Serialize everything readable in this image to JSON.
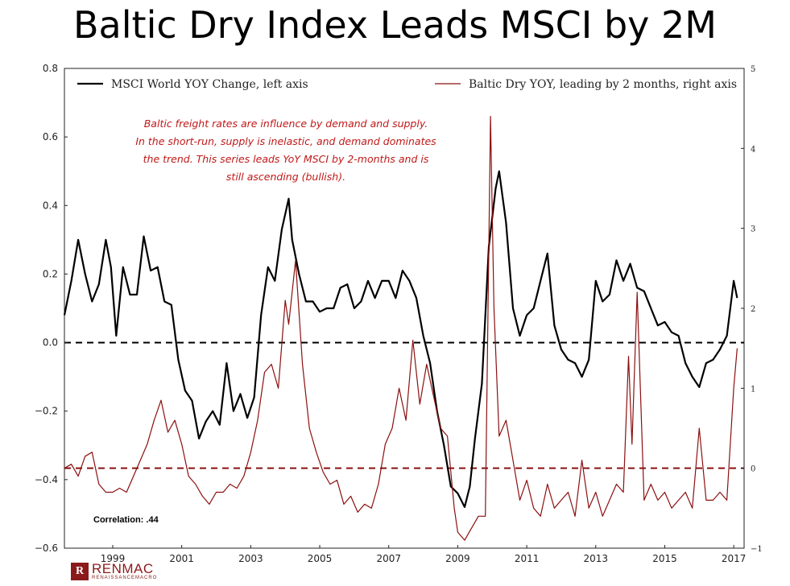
{
  "title": "Baltic Dry Index Leads MSCI by 2M",
  "chart_data": {
    "type": "line",
    "title": "Baltic Dry Index Leads MSCI by 2M",
    "x_range": [
      1997.6,
      2017.3
    ],
    "left_axis": {
      "range": [
        -0.6,
        0.8
      ],
      "ticks": [
        "0.8",
        "0.6",
        "0.4",
        "0.2",
        "0.0",
        "−0.2",
        "−0.4",
        "−0.6"
      ],
      "tick_values": [
        0.8,
        0.6,
        0.4,
        0.2,
        0.0,
        -0.2,
        -0.4,
        -0.6
      ]
    },
    "right_axis": {
      "range": [
        -1,
        5
      ],
      "ticks": [
        "5",
        "4",
        "3",
        "2",
        "1",
        "0",
        "−1"
      ],
      "tick_values": [
        5,
        4,
        3,
        2,
        1,
        0,
        -1
      ]
    },
    "x_ticks": {
      "labels": [
        "1999",
        "2001",
        "2003",
        "2005",
        "2007",
        "2009",
        "2011",
        "2013",
        "2015",
        "2017"
      ],
      "values": [
        1999,
        2001,
        2003,
        2005,
        2007,
        2009,
        2011,
        2013,
        2015,
        2017
      ]
    },
    "reference_lines": {
      "left_zero": 0.0,
      "right_zero": 0.0
    },
    "series": [
      {
        "name": "MSCI World YOY Change, left axis",
        "axis": "left",
        "color": "#000000",
        "x": [
          1997.6,
          1997.8,
          1998.0,
          1998.2,
          1998.4,
          1998.6,
          1998.8,
          1998.95,
          1999.1,
          1999.3,
          1999.5,
          1999.7,
          1999.9,
          2000.1,
          2000.3,
          2000.5,
          2000.7,
          2000.9,
          2001.1,
          2001.3,
          2001.5,
          2001.7,
          2001.9,
          2002.1,
          2002.3,
          2002.5,
          2002.7,
          2002.9,
          2003.1,
          2003.3,
          2003.5,
          2003.7,
          2003.9,
          2004.1,
          2004.2,
          2004.4,
          2004.6,
          2004.8,
          2005.0,
          2005.2,
          2005.4,
          2005.6,
          2005.8,
          2006.0,
          2006.2,
          2006.4,
          2006.6,
          2006.8,
          2007.0,
          2007.2,
          2007.4,
          2007.6,
          2007.8,
          2008.0,
          2008.2,
          2008.4,
          2008.6,
          2008.8,
          2009.0,
          2009.2,
          2009.35,
          2009.5,
          2009.7,
          2009.9,
          2010.1,
          2010.2,
          2010.4,
          2010.6,
          2010.8,
          2011.0,
          2011.2,
          2011.4,
          2011.6,
          2011.8,
          2012.0,
          2012.2,
          2012.4,
          2012.6,
          2012.8,
          2013.0,
          2013.2,
          2013.4,
          2013.6,
          2013.8,
          2014.0,
          2014.2,
          2014.4,
          2014.6,
          2014.8,
          2015.0,
          2015.2,
          2015.4,
          2015.6,
          2015.8,
          2016.0,
          2016.2,
          2016.4,
          2016.6,
          2016.8,
          2017.0,
          2017.1
        ],
        "values": [
          0.08,
          0.18,
          0.3,
          0.2,
          0.12,
          0.17,
          0.3,
          0.22,
          0.02,
          0.22,
          0.14,
          0.14,
          0.31,
          0.21,
          0.22,
          0.12,
          0.11,
          -0.05,
          -0.14,
          -0.17,
          -0.28,
          -0.23,
          -0.2,
          -0.24,
          -0.06,
          -0.2,
          -0.15,
          -0.22,
          -0.16,
          0.08,
          0.22,
          0.18,
          0.33,
          0.42,
          0.3,
          0.2,
          0.12,
          0.12,
          0.09,
          0.1,
          0.1,
          0.16,
          0.17,
          0.1,
          0.12,
          0.18,
          0.13,
          0.18,
          0.18,
          0.13,
          0.21,
          0.18,
          0.13,
          0.02,
          -0.06,
          -0.2,
          -0.3,
          -0.42,
          -0.44,
          -0.48,
          -0.42,
          -0.28,
          -0.12,
          0.28,
          0.45,
          0.5,
          0.35,
          0.1,
          0.02,
          0.08,
          0.1,
          0.18,
          0.26,
          0.05,
          -0.02,
          -0.05,
          -0.06,
          -0.1,
          -0.05,
          0.18,
          0.12,
          0.14,
          0.24,
          0.18,
          0.23,
          0.16,
          0.15,
          0.1,
          0.05,
          0.06,
          0.03,
          0.02,
          -0.06,
          -0.1,
          -0.13,
          -0.06,
          -0.05,
          -0.02,
          0.02,
          0.18,
          0.13
        ]
      },
      {
        "name": "Baltic Dry YOY, leading by 2 months, right axis",
        "axis": "right",
        "color": "#8b1010",
        "x": [
          1997.6,
          1997.8,
          1998.0,
          1998.2,
          1998.4,
          1998.6,
          1998.8,
          1999.0,
          1999.2,
          1999.4,
          1999.6,
          1999.8,
          2000.0,
          2000.2,
          2000.4,
          2000.6,
          2000.8,
          2001.0,
          2001.2,
          2001.4,
          2001.6,
          2001.8,
          2002.0,
          2002.2,
          2002.4,
          2002.6,
          2002.8,
          2003.0,
          2003.2,
          2003.4,
          2003.6,
          2003.8,
          2004.0,
          2004.1,
          2004.3,
          2004.5,
          2004.7,
          2004.9,
          2005.1,
          2005.3,
          2005.5,
          2005.7,
          2005.9,
          2006.1,
          2006.3,
          2006.5,
          2006.7,
          2006.9,
          2007.1,
          2007.3,
          2007.5,
          2007.7,
          2007.9,
          2008.1,
          2008.3,
          2008.5,
          2008.7,
          2008.9,
          2009.0,
          2009.2,
          2009.4,
          2009.6,
          2009.8,
          2009.95,
          2010.05,
          2010.2,
          2010.4,
          2010.6,
          2010.8,
          2011.0,
          2011.2,
          2011.4,
          2011.6,
          2011.8,
          2012.0,
          2012.2,
          2012.4,
          2012.6,
          2012.8,
          2013.0,
          2013.2,
          2013.4,
          2013.6,
          2013.8,
          2013.95,
          2014.05,
          2014.2,
          2014.4,
          2014.6,
          2014.8,
          2015.0,
          2015.2,
          2015.4,
          2015.6,
          2015.8,
          2016.0,
          2016.2,
          2016.4,
          2016.6,
          2016.8,
          2017.0,
          2017.1
        ],
        "values": [
          0.0,
          0.05,
          -0.1,
          0.15,
          0.2,
          -0.2,
          -0.3,
          -0.3,
          -0.25,
          -0.3,
          -0.1,
          0.1,
          0.3,
          0.6,
          0.85,
          0.45,
          0.6,
          0.3,
          -0.1,
          -0.2,
          -0.35,
          -0.45,
          -0.3,
          -0.3,
          -0.2,
          -0.25,
          -0.1,
          0.2,
          0.6,
          1.2,
          1.3,
          1.0,
          2.1,
          1.8,
          2.6,
          1.3,
          0.5,
          0.2,
          -0.05,
          -0.2,
          -0.15,
          -0.45,
          -0.35,
          -0.55,
          -0.45,
          -0.5,
          -0.2,
          0.3,
          0.5,
          1.0,
          0.6,
          1.6,
          0.8,
          1.3,
          0.9,
          0.5,
          0.4,
          -0.5,
          -0.8,
          -0.9,
          -0.75,
          -0.6,
          -0.6,
          4.4,
          2.0,
          0.4,
          0.6,
          0.1,
          -0.4,
          -0.15,
          -0.5,
          -0.6,
          -0.2,
          -0.5,
          -0.4,
          -0.3,
          -0.6,
          0.1,
          -0.5,
          -0.3,
          -0.6,
          -0.4,
          -0.2,
          -0.3,
          1.4,
          0.3,
          2.2,
          -0.4,
          -0.2,
          -0.4,
          -0.3,
          -0.5,
          -0.4,
          -0.3,
          -0.5,
          0.5,
          -0.4,
          -0.4,
          -0.3,
          -0.4,
          1.0,
          1.5
        ]
      }
    ],
    "annotation_lines": [
      "Baltic freight rates are influence by demand and supply.",
      "In the short-run, supply is inelastic, and demand dominates",
      "the trend.  This series leads YoY MSCI by 2-months and is",
      "still ascending (bullish)."
    ],
    "correlation_label": "Correlation: .44",
    "legend_position": "top"
  },
  "logo": {
    "mark": "R",
    "name": "RENMAC",
    "subtitle": "RENAISSANCEMACRO"
  }
}
